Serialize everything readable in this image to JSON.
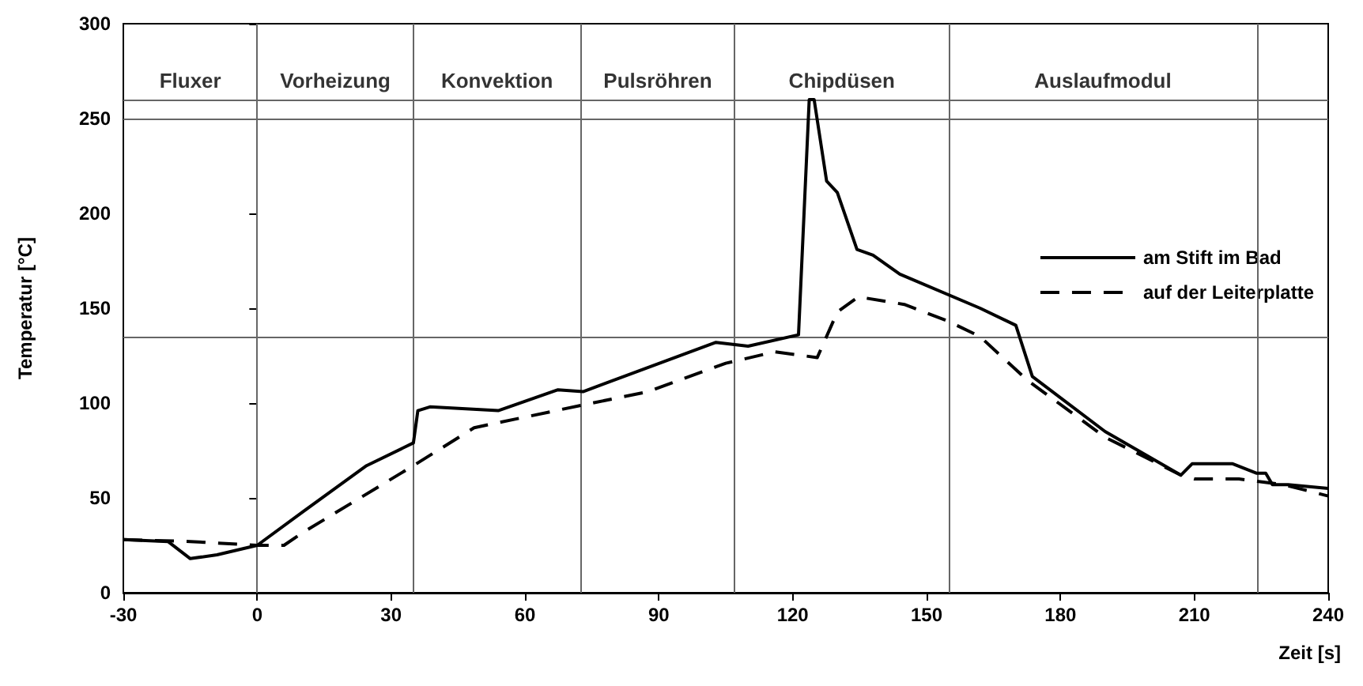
{
  "chart_data": {
    "type": "line",
    "xlabel": "Zeit [s]",
    "ylabel": "Temperatur [°C]",
    "xlim": [
      -30,
      240
    ],
    "xticks": [
      -30,
      0,
      30,
      60,
      90,
      120,
      150,
      180,
      210,
      240
    ],
    "ylim": [
      0,
      300
    ],
    "yticks": [
      0,
      50,
      100,
      150,
      200,
      250,
      300
    ],
    "grid": false,
    "legend": "top right",
    "marker": "none",
    "series": [
      {
        "name": "am Stift im Bad",
        "color": "#000000",
        "line_style": "solid",
        "x": [
          -30,
          -20,
          -15,
          -9,
          0,
          10.4,
          24.5,
          35,
          36,
          38.7,
          54,
          67.4,
          73,
          102.8,
          110,
          121.3,
          123.7,
          124.8,
          127.6,
          130,
          134.4,
          138,
          144,
          162,
          170,
          173.7,
          190,
          207,
          209.5,
          218.6,
          224,
          226,
          227.5,
          231,
          240
        ],
        "values": [
          28,
          27,
          18,
          20,
          25,
          43,
          67,
          79,
          96,
          98,
          96,
          107,
          106,
          132,
          130,
          136,
          260,
          260,
          217,
          211,
          181,
          178,
          168,
          150,
          141,
          114,
          85,
          62,
          68,
          68,
          63,
          63,
          57,
          57,
          55
        ]
      },
      {
        "name": "auf der Leiterplatte",
        "color": "#000000",
        "line_style": "dashed",
        "x": [
          -30,
          -15,
          0,
          6,
          10.4,
          35,
          48.6,
          73,
          87.6,
          105,
          116,
          125.5,
          130,
          134.7,
          145,
          155,
          162,
          172.6,
          190,
          207,
          210,
          220,
          230,
          240
        ],
        "values": [
          28,
          27,
          25,
          25,
          32,
          67,
          87,
          99,
          106,
          121,
          127,
          124,
          148,
          156,
          152,
          143,
          135,
          112,
          82,
          62,
          60,
          60,
          57,
          51
        ]
      }
    ],
    "ref_lines": [
      {
        "axis": "x",
        "value": 0
      },
      {
        "axis": "x",
        "value": 35
      },
      {
        "axis": "x",
        "value": 72.5
      },
      {
        "axis": "x",
        "value": 107
      },
      {
        "axis": "x",
        "value": 155
      },
      {
        "axis": "x",
        "value": 224
      },
      {
        "axis": "y",
        "value": 135
      },
      {
        "axis": "y",
        "value": 250
      },
      {
        "axis": "y",
        "value": 260
      }
    ],
    "annotations": [
      "Fluxer",
      "Vorheizung",
      "Konvektion",
      "Pulsröhren",
      "Chipdüsen",
      "Auslaufmodul"
    ]
  }
}
